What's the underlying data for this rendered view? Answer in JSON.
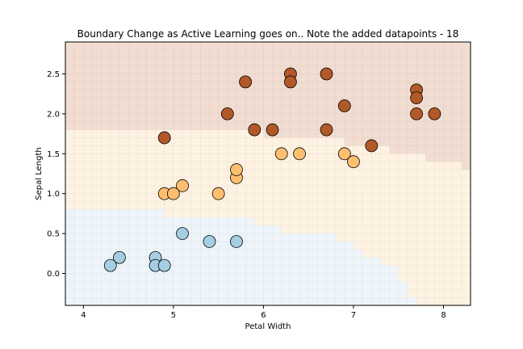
{
  "chart_data": {
    "type": "scatter",
    "title": "Boundary Change as Active Learning goes on.. Note the added datapoints - 18",
    "xlabel": "Petal Width",
    "ylabel": "Sepal Length",
    "xlim": [
      3.8,
      8.3
    ],
    "ylim": [
      -0.4,
      2.9
    ],
    "xticks": [
      "4",
      "5",
      "6",
      "7",
      "8"
    ],
    "yticks": [
      "0.0",
      "0.5",
      "1.0",
      "1.5",
      "2.0",
      "2.5"
    ],
    "grid": false,
    "background_regions": {
      "description": "decision boundary regions",
      "colors": {
        "class0": "#eef5fa",
        "class1": "#fef2e3",
        "class2": "#f2ddd2"
      },
      "boundary_0_1": [
        [
          3.8,
          0.8
        ],
        [
          4.9,
          0.8
        ],
        [
          4.9,
          0.7
        ],
        [
          5.9,
          0.7
        ],
        [
          5.9,
          0.6
        ],
        [
          6.2,
          0.6
        ],
        [
          6.2,
          0.5
        ],
        [
          6.8,
          0.5
        ],
        [
          6.8,
          0.4
        ],
        [
          7.0,
          0.4
        ],
        [
          7.0,
          0.3
        ],
        [
          7.1,
          0.3
        ],
        [
          7.1,
          0.2
        ],
        [
          7.3,
          0.2
        ],
        [
          7.3,
          0.1
        ],
        [
          7.5,
          0.1
        ],
        [
          7.5,
          -0.1
        ],
        [
          7.6,
          -0.1
        ],
        [
          7.6,
          -0.3
        ],
        [
          7.7,
          -0.3
        ],
        [
          7.7,
          -0.4
        ]
      ],
      "boundary_1_2": [
        [
          3.8,
          1.8
        ],
        [
          4.9,
          1.8
        ],
        [
          6.0,
          1.8
        ],
        [
          6.0,
          1.7
        ],
        [
          6.9,
          1.7
        ],
        [
          6.9,
          1.6
        ],
        [
          7.4,
          1.6
        ],
        [
          7.4,
          1.5
        ],
        [
          7.8,
          1.5
        ],
        [
          7.8,
          1.4
        ],
        [
          8.2,
          1.4
        ],
        [
          8.2,
          1.3
        ],
        [
          8.3,
          1.3
        ]
      ]
    },
    "series": [
      {
        "class": 0,
        "color": "#a6cee3",
        "x": [
          4.3,
          4.4,
          4.8,
          4.8,
          4.9,
          5.1,
          5.4,
          5.7
        ],
        "y": [
          0.1,
          0.2,
          0.2,
          0.1,
          0.1,
          0.5,
          0.4,
          0.4
        ]
      },
      {
        "class": 1,
        "color": "#fdbf6f",
        "x": [
          4.9,
          5.0,
          5.1,
          5.5,
          5.7,
          5.7,
          6.2,
          6.4,
          6.9,
          7.0
        ],
        "y": [
          1.0,
          1.0,
          1.1,
          1.0,
          1.2,
          1.3,
          1.5,
          1.5,
          1.5,
          1.4
        ]
      },
      {
        "class": 2,
        "color": "#b15928",
        "x": [
          4.9,
          5.6,
          5.8,
          5.9,
          6.1,
          6.3,
          6.3,
          6.7,
          6.7,
          6.9,
          7.2,
          7.7,
          7.7,
          7.7,
          7.9
        ],
        "y": [
          1.7,
          2.0,
          2.4,
          1.8,
          1.8,
          2.5,
          2.4,
          2.5,
          1.8,
          2.1,
          1.6,
          2.3,
          2.2,
          2.0,
          2.0
        ]
      }
    ]
  }
}
